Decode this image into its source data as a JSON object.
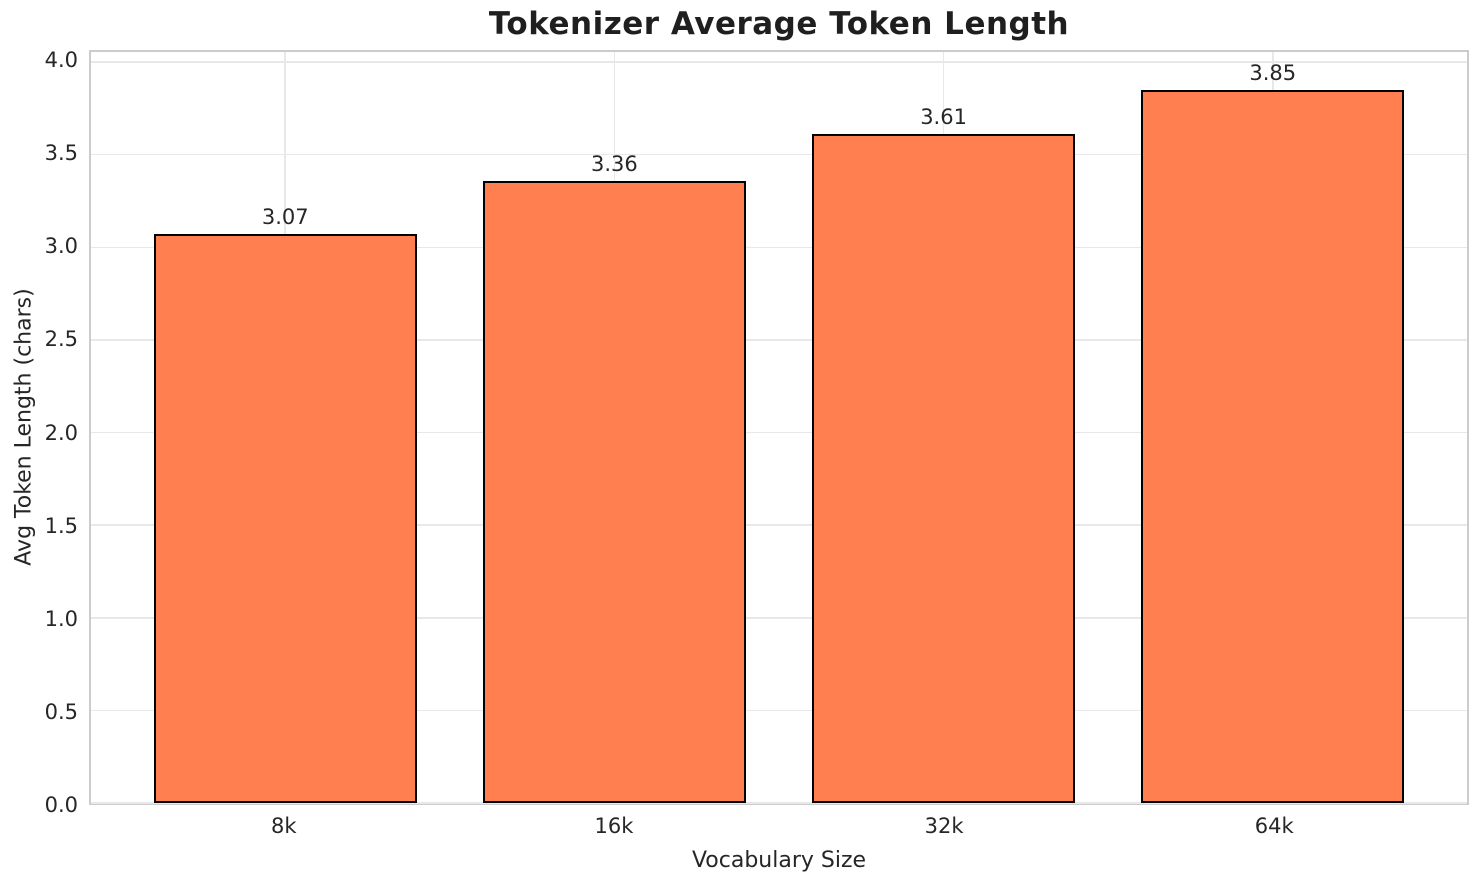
{
  "chart_data": {
    "type": "bar",
    "title": "Tokenizer Average Token Length",
    "xlabel": "Vocabulary Size",
    "ylabel": "Avg Token Length (chars)",
    "categories": [
      "8k",
      "16k",
      "32k",
      "64k"
    ],
    "values": [
      3.07,
      3.36,
      3.61,
      3.85
    ],
    "bar_labels": [
      "3.07",
      "3.36",
      "3.61",
      "3.85"
    ],
    "yticks": [
      0.0,
      0.5,
      1.0,
      1.5,
      2.0,
      2.5,
      3.0,
      3.5,
      4.0
    ],
    "ytick_labels": [
      "0.0",
      "0.5",
      "1.0",
      "1.5",
      "2.0",
      "2.5",
      "3.0",
      "3.5",
      "4.0"
    ],
    "ylim": [
      0,
      4.054
    ],
    "xlim": [
      -0.59,
      3.59
    ],
    "x_positions": [
      0,
      1,
      2,
      3
    ],
    "bar_width_fraction": 0.8,
    "grid": true,
    "legend_position": "none",
    "colors": {
      "bar_fill": "#FF7F50",
      "bar_edge": "#000000",
      "grid": "#E8E8E8",
      "spine": "#CCCCCC",
      "text": "#262626",
      "title": "#1F1F1F",
      "background": "#FFFFFF"
    }
  }
}
